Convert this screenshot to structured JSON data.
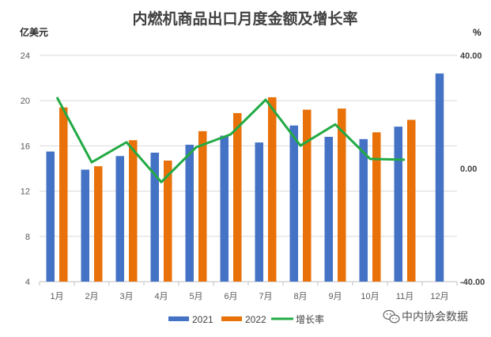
{
  "chart_data": {
    "type": "bar",
    "title": "内燃机商品出口月度金额及增长率",
    "ylabel": "亿美元",
    "y2label": "%",
    "categories": [
      "1月",
      "2月",
      "3月",
      "4月",
      "5月",
      "6月",
      "7月",
      "8月",
      "9月",
      "10月",
      "11月",
      "12月"
    ],
    "ylim": [
      4,
      24
    ],
    "yticks": [
      "4",
      "8",
      "12",
      "16",
      "20",
      "24"
    ],
    "y2lim": [
      -40,
      40
    ],
    "y2ticks": [
      "-40.00",
      "0.00",
      "40.00"
    ],
    "grid": true,
    "legend": "bottom",
    "series": [
      {
        "name": "2021",
        "type": "bar",
        "axis": "left",
        "color": "#4472C4",
        "values": [
          15.5,
          13.9,
          15.1,
          15.4,
          16.1,
          16.9,
          16.3,
          17.8,
          16.8,
          16.6,
          17.7,
          22.4
        ]
      },
      {
        "name": "2022",
        "type": "bar",
        "axis": "left",
        "color": "#E8710A",
        "values": [
          19.4,
          14.2,
          16.5,
          14.7,
          17.3,
          18.9,
          20.3,
          19.2,
          19.3,
          17.2,
          18.3,
          null
        ]
      },
      {
        "name": "增长率",
        "type": "line",
        "axis": "right",
        "color": "#22AA44",
        "values": [
          25.2,
          2.2,
          9.3,
          -4.8,
          7.5,
          12.1,
          24.3,
          8.1,
          15.6,
          3.4,
          3.1,
          null
        ]
      }
    ]
  },
  "watermark": {
    "text": "中内协会数据",
    "icon": "wechat-icon"
  }
}
